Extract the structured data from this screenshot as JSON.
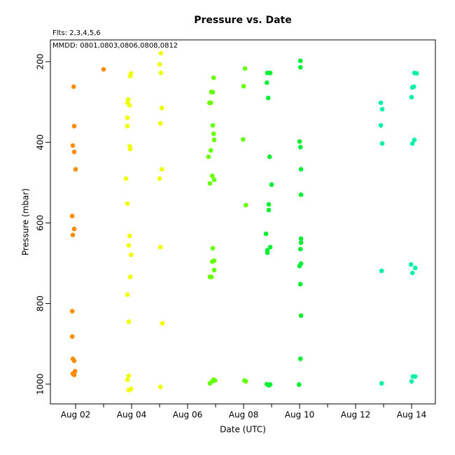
{
  "chart_data": {
    "type": "scatter",
    "title": "Pressure  vs. Date",
    "subtitle": "Flts: 2,3,4,5,6",
    "annotation": "MMDD: 0801,0803,0806,0808,0812",
    "x_label": "Date (UTC)",
    "y_label": "Pressure (mbar)",
    "xlim": [
      1.1,
      14.85
    ],
    "xticks": [
      {
        "value": 2,
        "label": "Aug 02"
      },
      {
        "value": 4,
        "label": "Aug 04"
      },
      {
        "value": 6,
        "label": "Aug 06"
      },
      {
        "value": 8,
        "label": "Aug 08"
      },
      {
        "value": 10,
        "label": "Aug 10"
      },
      {
        "value": 12,
        "label": "Aug 12"
      },
      {
        "value": 14,
        "label": "Aug 14"
      }
    ],
    "xminorticks": [
      3,
      5,
      7,
      9,
      11,
      13
    ],
    "ylim": [
      146,
      1049
    ],
    "y_reversed": true,
    "yticks": [
      200,
      400,
      600,
      800,
      1000
    ],
    "series": [
      {
        "color": "#ff8c00",
        "x": [
          1.93,
          1.95,
          1.9,
          1.95,
          2.0,
          1.88,
          1.95,
          1.9,
          1.88,
          1.88,
          1.9,
          1.95,
          1.98,
          1.9,
          1.95,
          3.0
        ],
        "values": [
          262,
          360,
          408,
          424,
          467,
          583,
          615,
          630,
          819,
          882,
          937,
          942,
          968,
          974,
          977,
          219
        ]
      },
      {
        "color": "#eeff00",
        "x": [
          3.98,
          3.95,
          3.85,
          3.93,
          3.88,
          3.85,
          3.85,
          3.93,
          3.95,
          3.8,
          3.85,
          3.93,
          3.9,
          3.98,
          3.95,
          3.85,
          3.9,
          3.9,
          3.85,
          3.98,
          3.9,
          5.05,
          5.0,
          5.05,
          5.08,
          5.03,
          5.08,
          5.0,
          5.03,
          5.1,
          5.03
        ],
        "values": [
          229,
          236,
          301,
          308,
          294,
          339,
          360,
          410,
          417,
          490,
          552,
          632,
          656,
          679,
          734,
          778,
          845,
          979,
          989,
          1012,
          1015,
          179,
          207,
          228,
          315,
          353,
          467,
          490,
          660,
          849,
          1007
        ]
      },
      {
        "color": "#66ff00",
        "x": [
          6.93,
          6.85,
          6.9,
          6.78,
          6.83,
          6.9,
          6.93,
          6.95,
          6.83,
          6.75,
          6.88,
          6.95,
          6.8,
          6.9,
          6.88,
          6.95,
          6.95,
          6.8,
          6.85,
          6.8,
          6.88,
          6.93,
          6.98,
          8.05,
          8.0,
          7.98,
          8.08,
          8.03,
          8.08
        ],
        "values": [
          240,
          275,
          276,
          302,
          302,
          358,
          379,
          394,
          420,
          436,
          483,
          493,
          502,
          663,
          696,
          694,
          717,
          734,
          734,
          998,
          993,
          989,
          991,
          217,
          261,
          393,
          556,
          991,
          993
        ]
      },
      {
        "color": "#00ee33",
        "x": [
          10.03,
          10.03,
          8.85,
          8.95,
          8.83,
          8.88,
          10.0,
          10.03,
          8.93,
          10.05,
          9.0,
          10.05,
          8.9,
          8.9,
          10.05,
          10.05,
          8.8,
          8.95,
          8.85,
          8.85,
          10.03,
          10.05,
          10.0,
          10.03,
          10.05,
          10.03,
          8.83,
          8.9,
          8.95,
          9.98
        ],
        "values": [
          198,
          214,
          228,
          228,
          252,
          290,
          398,
          412,
          436,
          467,
          505,
          530,
          554,
          568,
          639,
          649,
          627,
          660,
          668,
          674,
          665,
          701,
          707,
          752,
          830,
          937,
          1000,
          1003,
          1001,
          1001
        ]
      },
      {
        "color": "#00f0a8",
        "x": [
          12.9,
          12.95,
          12.9,
          12.95,
          12.93,
          14.1,
          14.18,
          14.08,
          14.03,
          14.0,
          14.1,
          14.03,
          13.98,
          14.13,
          14.03,
          14.05,
          14.13,
          14.0,
          12.93
        ],
        "values": [
          302,
          318,
          358,
          403,
          719,
          228,
          229,
          262,
          264,
          288,
          394,
          403,
          703,
          712,
          724,
          981,
          981,
          993,
          998
        ]
      }
    ]
  }
}
